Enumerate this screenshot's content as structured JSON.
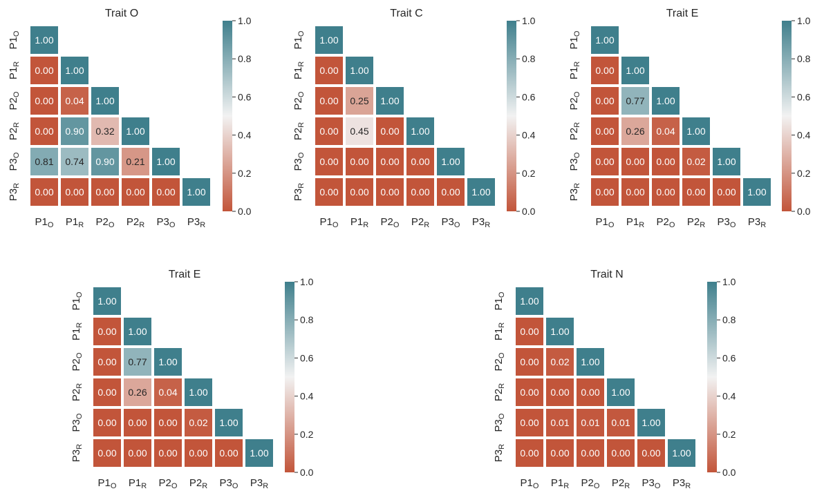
{
  "figure": {
    "panels_note": "five lower-triangular correlation heatmaps",
    "colors": {
      "low": "#c2553a",
      "mid": "#f2f2f2",
      "high": "#3f7f8c",
      "cell_text_dark": "#262626",
      "cell_text_light": "#ffffff"
    }
  },
  "chart_data": [
    {
      "type": "heatmap",
      "title": "Trait O",
      "labels": [
        [
          "P1",
          "O"
        ],
        [
          "P1",
          "R"
        ],
        [
          "P2",
          "O"
        ],
        [
          "P2",
          "R"
        ],
        [
          "P3",
          "O"
        ],
        [
          "P3",
          "R"
        ]
      ],
      "matrix": [
        [
          1.0
        ],
        [
          0.0,
          1.0
        ],
        [
          0.0,
          0.04,
          1.0
        ],
        [
          0.0,
          0.9,
          0.32,
          1.0
        ],
        [
          0.81,
          0.74,
          0.9,
          0.21,
          1.0
        ],
        [
          0.0,
          0.0,
          0.0,
          0.0,
          0.0,
          1.0
        ]
      ],
      "vmin": 0.0,
      "vmax": 1.0,
      "colorbar_ticks": [
        "0.0",
        "0.2",
        "0.4",
        "0.6",
        "0.8",
        "1.0"
      ]
    },
    {
      "type": "heatmap",
      "title": "Trait C",
      "labels": [
        [
          "P1",
          "O"
        ],
        [
          "P1",
          "R"
        ],
        [
          "P2",
          "O"
        ],
        [
          "P2",
          "R"
        ],
        [
          "P3",
          "O"
        ],
        [
          "P3",
          "R"
        ]
      ],
      "matrix": [
        [
          1.0
        ],
        [
          0.0,
          1.0
        ],
        [
          0.0,
          0.25,
          1.0
        ],
        [
          0.0,
          0.45,
          0.0,
          1.0
        ],
        [
          0.0,
          0.0,
          0.0,
          0.0,
          1.0
        ],
        [
          0.0,
          0.0,
          0.0,
          0.0,
          0.0,
          1.0
        ]
      ],
      "vmin": 0.0,
      "vmax": 1.0,
      "colorbar_ticks": [
        "0.0",
        "0.2",
        "0.4",
        "0.6",
        "0.8",
        "1.0"
      ]
    },
    {
      "type": "heatmap",
      "title": "Trait E",
      "labels": [
        [
          "P1",
          "O"
        ],
        [
          "P1",
          "R"
        ],
        [
          "P2",
          "O"
        ],
        [
          "P2",
          "R"
        ],
        [
          "P3",
          "O"
        ],
        [
          "P3",
          "R"
        ]
      ],
      "matrix": [
        [
          1.0
        ],
        [
          0.0,
          1.0
        ],
        [
          0.0,
          0.77,
          1.0
        ],
        [
          0.0,
          0.26,
          0.04,
          1.0
        ],
        [
          0.0,
          0.0,
          0.0,
          0.02,
          1.0
        ],
        [
          0.0,
          0.0,
          0.0,
          0.0,
          0.0,
          1.0
        ]
      ],
      "vmin": 0.0,
      "vmax": 1.0,
      "colorbar_ticks": [
        "0.0",
        "0.2",
        "0.4",
        "0.6",
        "0.8",
        "1.0"
      ]
    },
    {
      "type": "heatmap",
      "title": "Trait E",
      "labels": [
        [
          "P1",
          "O"
        ],
        [
          "P1",
          "R"
        ],
        [
          "P2",
          "O"
        ],
        [
          "P2",
          "R"
        ],
        [
          "P3",
          "O"
        ],
        [
          "P3",
          "R"
        ]
      ],
      "matrix": [
        [
          1.0
        ],
        [
          0.0,
          1.0
        ],
        [
          0.0,
          0.77,
          1.0
        ],
        [
          0.0,
          0.26,
          0.04,
          1.0
        ],
        [
          0.0,
          0.0,
          0.0,
          0.02,
          1.0
        ],
        [
          0.0,
          0.0,
          0.0,
          0.0,
          0.0,
          1.0
        ]
      ],
      "vmin": 0.0,
      "vmax": 1.0,
      "colorbar_ticks": [
        "0.0",
        "0.2",
        "0.4",
        "0.6",
        "0.8",
        "1.0"
      ]
    },
    {
      "type": "heatmap",
      "title": "Trait N",
      "labels": [
        [
          "P1",
          "O"
        ],
        [
          "P1",
          "R"
        ],
        [
          "P2",
          "O"
        ],
        [
          "P2",
          "R"
        ],
        [
          "P3",
          "O"
        ],
        [
          "P3",
          "R"
        ]
      ],
      "matrix": [
        [
          1.0
        ],
        [
          0.0,
          1.0
        ],
        [
          0.0,
          0.02,
          1.0
        ],
        [
          0.0,
          0.0,
          0.0,
          1.0
        ],
        [
          0.0,
          0.01,
          0.01,
          0.01,
          1.0
        ],
        [
          0.0,
          0.0,
          0.0,
          0.0,
          0.0,
          1.0
        ]
      ],
      "vmin": 0.0,
      "vmax": 1.0,
      "colorbar_ticks": [
        "0.0",
        "0.2",
        "0.4",
        "0.6",
        "0.8",
        "1.0"
      ]
    }
  ]
}
